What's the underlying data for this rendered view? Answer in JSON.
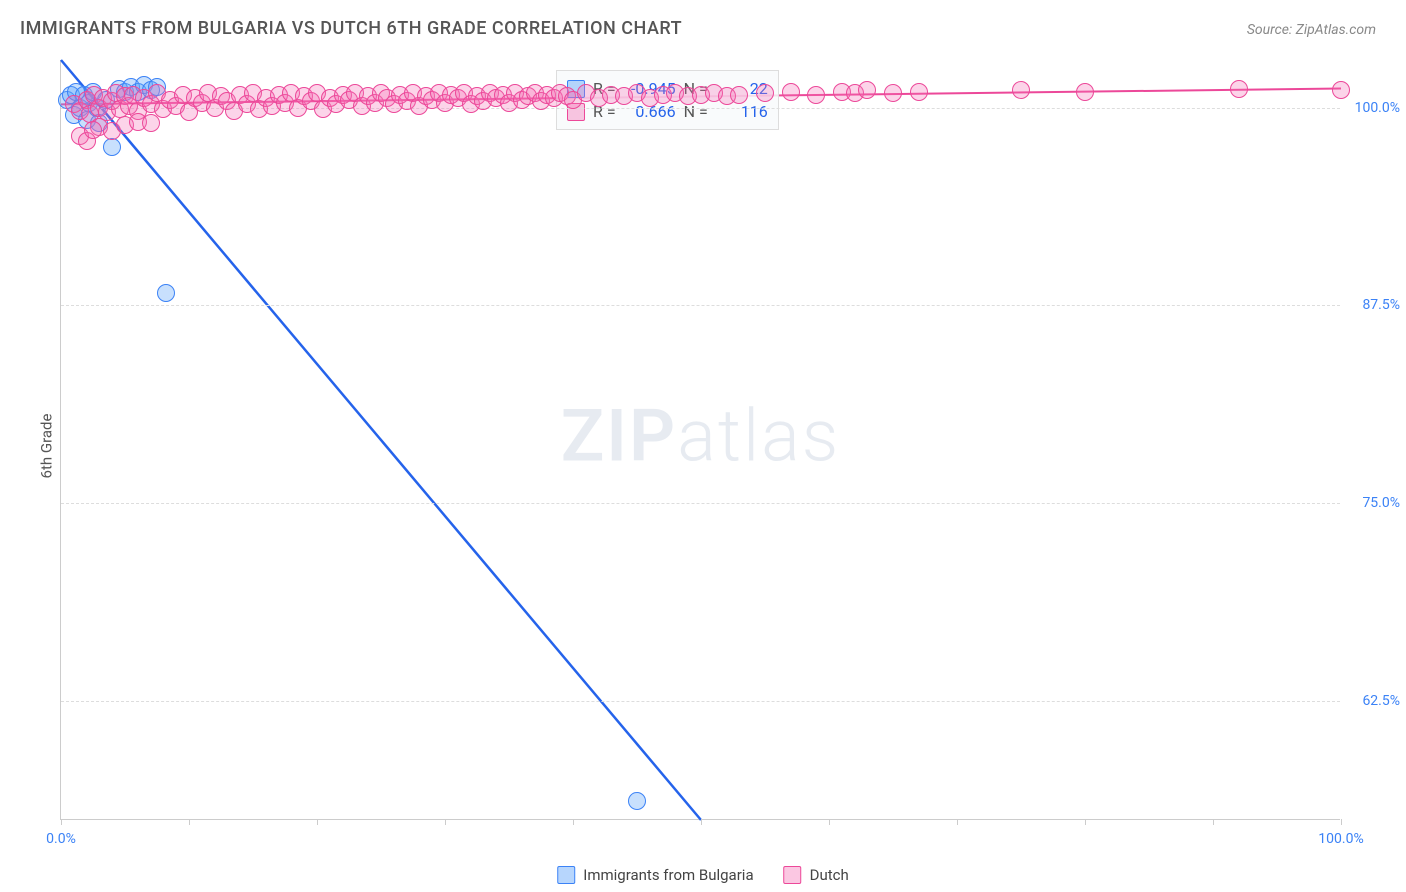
{
  "title": "IMMIGRANTS FROM BULGARIA VS DUTCH 6TH GRADE CORRELATION CHART",
  "source_label": "Source: ZipAtlas.com",
  "watermark_zip": "ZIP",
  "watermark_atlas": "atlas",
  "y_axis_label": "6th Grade",
  "chart": {
    "type": "scatter-with-trend",
    "xlim": [
      0,
      100
    ],
    "ylim": [
      55,
      103
    ],
    "background_color": "#ffffff",
    "grid_color": "#dddddd",
    "axis_color": "#cccccc",
    "yticks": [
      {
        "v": 62.5,
        "label": "62.5%"
      },
      {
        "v": 75.0,
        "label": "75.0%"
      },
      {
        "v": 87.5,
        "label": "87.5%"
      },
      {
        "v": 100.0,
        "label": "100.0%"
      }
    ],
    "xtick_positions": [
      0,
      10,
      20,
      30,
      40,
      50,
      60,
      70,
      80,
      90,
      100
    ],
    "xtick_labels": [
      {
        "v": 0,
        "label": "0.0%"
      },
      {
        "v": 100,
        "label": "100.0%"
      }
    ],
    "marker_radius": 9,
    "series": [
      {
        "name": "Immigrants from Bulgaria",
        "color_fill": "rgba(96,165,250,0.35)",
        "color_stroke": "#3b82f6",
        "trend_color": "#2563eb",
        "trend_width": 2.5,
        "R": "-0.945",
        "N": "22",
        "trend": {
          "x1": 0,
          "y1": 103,
          "x2": 50,
          "y2": 55
        },
        "points": [
          [
            0.5,
            100.5
          ],
          [
            0.8,
            100.8
          ],
          [
            1.0,
            99.5
          ],
          [
            1.2,
            101.0
          ],
          [
            1.5,
            100.0
          ],
          [
            1.8,
            100.8
          ],
          [
            2.0,
            99.2
          ],
          [
            2.2,
            100.3
          ],
          [
            2.5,
            101.0
          ],
          [
            2.8,
            100.0
          ],
          [
            3.0,
            99.0
          ],
          [
            3.5,
            100.5
          ],
          [
            4.5,
            101.2
          ],
          [
            5.0,
            101.0
          ],
          [
            5.5,
            101.3
          ],
          [
            6.0,
            101.0
          ],
          [
            6.5,
            101.4
          ],
          [
            7.0,
            101.1
          ],
          [
            7.5,
            101.3
          ],
          [
            4.0,
            97.5
          ],
          [
            8.2,
            88.3
          ],
          [
            45.0,
            56.2
          ]
        ]
      },
      {
        "name": "Dutch",
        "color_fill": "rgba(244,114,182,0.30)",
        "color_stroke": "#ec4899",
        "trend_color": "#ec4899",
        "trend_width": 2,
        "R": "0.666",
        "N": "116",
        "trend": {
          "x1": 0,
          "y1": 100.2,
          "x2": 100,
          "y2": 101.2
        },
        "points": [
          [
            1,
            100.2
          ],
          [
            1.5,
            99.8
          ],
          [
            2,
            100.5
          ],
          [
            2.3,
            99.6
          ],
          [
            2.6,
            100.8
          ],
          [
            3,
            100.0
          ],
          [
            3.3,
            100.6
          ],
          [
            3.6,
            99.7
          ],
          [
            4,
            100.4
          ],
          [
            4.3,
            100.9
          ],
          [
            4.6,
            99.9
          ],
          [
            5,
            100.7
          ],
          [
            5.3,
            100.1
          ],
          [
            5.6,
            100.8
          ],
          [
            6,
            99.8
          ],
          [
            6.5,
            100.6
          ],
          [
            7,
            100.2
          ],
          [
            7.5,
            100.9
          ],
          [
            8,
            99.9
          ],
          [
            8.5,
            100.5
          ],
          [
            9,
            100.1
          ],
          [
            9.5,
            100.8
          ],
          [
            10,
            99.7
          ],
          [
            10.5,
            100.6
          ],
          [
            11,
            100.3
          ],
          [
            11.5,
            100.9
          ],
          [
            12,
            100.0
          ],
          [
            12.5,
            100.7
          ],
          [
            13,
            100.4
          ],
          [
            13.5,
            99.8
          ],
          [
            14,
            100.8
          ],
          [
            14.5,
            100.2
          ],
          [
            15,
            100.9
          ],
          [
            15.5,
            99.9
          ],
          [
            16,
            100.6
          ],
          [
            16.5,
            100.1
          ],
          [
            17,
            100.8
          ],
          [
            17.5,
            100.3
          ],
          [
            18,
            100.9
          ],
          [
            18.5,
            100.0
          ],
          [
            19,
            100.7
          ],
          [
            19.5,
            100.4
          ],
          [
            20,
            100.9
          ],
          [
            20.5,
            99.9
          ],
          [
            21,
            100.6
          ],
          [
            21.5,
            100.2
          ],
          [
            22,
            100.8
          ],
          [
            22.5,
            100.5
          ],
          [
            23,
            100.9
          ],
          [
            23.5,
            100.1
          ],
          [
            24,
            100.7
          ],
          [
            24.5,
            100.3
          ],
          [
            25,
            100.9
          ],
          [
            25.5,
            100.6
          ],
          [
            26,
            100.2
          ],
          [
            26.5,
            100.8
          ],
          [
            27,
            100.4
          ],
          [
            27.5,
            100.9
          ],
          [
            28,
            100.1
          ],
          [
            28.5,
            100.7
          ],
          [
            29,
            100.5
          ],
          [
            29.5,
            100.9
          ],
          [
            30,
            100.3
          ],
          [
            30.5,
            100.8
          ],
          [
            31,
            100.6
          ],
          [
            31.5,
            100.9
          ],
          [
            32,
            100.2
          ],
          [
            32.5,
            100.7
          ],
          [
            33,
            100.4
          ],
          [
            33.5,
            100.9
          ],
          [
            34,
            100.6
          ],
          [
            34.5,
            100.8
          ],
          [
            35,
            100.3
          ],
          [
            35.5,
            100.9
          ],
          [
            36,
            100.5
          ],
          [
            36.5,
            100.7
          ],
          [
            37,
            100.9
          ],
          [
            37.5,
            100.4
          ],
          [
            38,
            100.8
          ],
          [
            38.5,
            100.6
          ],
          [
            39,
            100.9
          ],
          [
            39.5,
            100.7
          ],
          [
            40,
            100.5
          ],
          [
            41,
            100.9
          ],
          [
            42,
            100.6
          ],
          [
            43,
            100.8
          ],
          [
            44,
            100.7
          ],
          [
            45,
            100.9
          ],
          [
            46,
            100.6
          ],
          [
            47,
            100.8
          ],
          [
            48,
            100.9
          ],
          [
            49,
            100.7
          ],
          [
            50,
            100.8
          ],
          [
            51,
            100.9
          ],
          [
            52,
            100.7
          ],
          [
            53,
            100.8
          ],
          [
            55,
            100.9
          ],
          [
            57,
            101.0
          ],
          [
            59,
            100.8
          ],
          [
            61,
            101.0
          ],
          [
            62,
            100.9
          ],
          [
            63,
            101.1
          ],
          [
            65,
            100.9
          ],
          [
            67,
            101.0
          ],
          [
            75,
            101.1
          ],
          [
            80,
            101.0
          ],
          [
            92,
            101.2
          ],
          [
            100,
            101.1
          ],
          [
            3,
            98.8
          ],
          [
            4,
            98.5
          ],
          [
            5,
            98.9
          ],
          [
            1.5,
            98.2
          ],
          [
            2,
            97.9
          ],
          [
            6,
            99.1
          ],
          [
            7,
            99.0
          ],
          [
            2.5,
            98.6
          ]
        ]
      }
    ]
  },
  "stats_legend": {
    "R_label": "R =",
    "N_label": "N ="
  },
  "bottom_legend_labels": [
    "Immigrants from Bulgaria",
    "Dutch"
  ],
  "text_color_axis": "#3b82f6",
  "title_color": "#555555"
}
